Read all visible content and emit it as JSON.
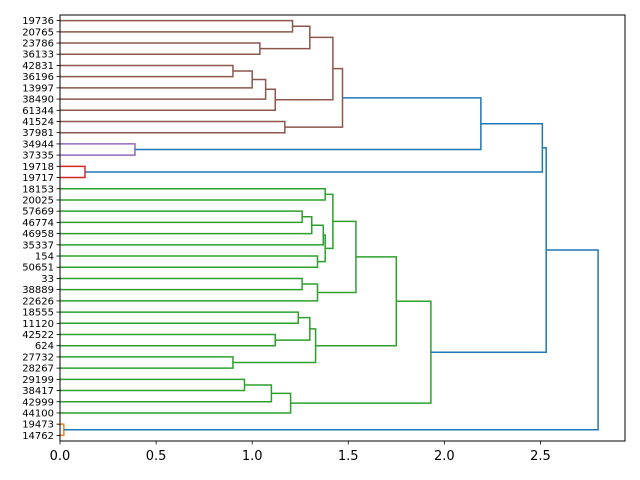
{
  "chart_data": {
    "type": "dendrogram",
    "orientation": "horizontal",
    "xlim": [
      0,
      2.94
    ],
    "xticks": [
      0.0,
      0.5,
      1.0,
      1.5,
      2.0,
      2.5
    ],
    "xtick_labels": [
      "0.0",
      "0.5",
      "1.0",
      "1.5",
      "2.0",
      "2.5"
    ],
    "leaves": [
      "19736",
      "20765",
      "23786",
      "36133",
      "42831",
      "36196",
      "13997",
      "38490",
      "61344",
      "41524",
      "37981",
      "34944",
      "37335",
      "19718",
      "19717",
      "18153",
      "20025",
      "57669",
      "46774",
      "46958",
      "35337",
      "154",
      "50651",
      "33",
      "38889",
      "22626",
      "18555",
      "11120",
      "42522",
      "624",
      "27732",
      "28267",
      "29199",
      "38417",
      "42999",
      "44100",
      "19473",
      "14762"
    ],
    "colors": {
      "brown": "#8c564b",
      "purple": "#9467bd",
      "red": "#d62728",
      "green": "#2ca02c",
      "orange": "#ff7f0e",
      "blue": "#1f77b4"
    },
    "links": [
      {
        "a": 0,
        "b": 1,
        "d": 1.21,
        "c": "brown"
      },
      {
        "a": 2,
        "b": 3,
        "d": 1.04,
        "c": "brown"
      },
      {
        "a": 0.5,
        "b": 2.5,
        "d": 1.3,
        "c": "brown"
      },
      {
        "a": 4,
        "b": 5,
        "d": 0.9,
        "c": "brown"
      },
      {
        "a": 4.5,
        "b": 6,
        "d": 1.0,
        "c": "brown"
      },
      {
        "a": 5.25,
        "b": 7,
        "d": 1.07,
        "c": "brown"
      },
      {
        "a": 6.125,
        "b": 8,
        "d": 1.12,
        "c": "brown"
      },
      {
        "a": 1.5,
        "b": 7.0625,
        "d": 1.42,
        "c": "brown"
      },
      {
        "a": 9,
        "b": 10,
        "d": 1.17,
        "c": "brown"
      },
      {
        "a": 4.28125,
        "b": 9.5,
        "d": 1.47,
        "c": "brown"
      },
      {
        "a": 11,
        "b": 12,
        "d": 0.39,
        "c": "purple"
      },
      {
        "a": 6.890625,
        "b": 11.5,
        "d": 2.19,
        "c": "blue"
      },
      {
        "a": 13,
        "b": 14,
        "d": 0.13,
        "c": "red"
      },
      {
        "a": 9.1953125,
        "b": 13.5,
        "d": 2.51,
        "c": "blue"
      },
      {
        "a": 15,
        "b": 16,
        "d": 1.38,
        "c": "green"
      },
      {
        "a": 17,
        "b": 18,
        "d": 1.26,
        "c": "green"
      },
      {
        "a": 17.5,
        "b": 19,
        "d": 1.31,
        "c": "green"
      },
      {
        "a": 18.25,
        "b": 20,
        "d": 1.37,
        "c": "green"
      },
      {
        "a": 21,
        "b": 22,
        "d": 1.34,
        "c": "green"
      },
      {
        "a": 19.125,
        "b": 21.5,
        "d": 1.38,
        "c": "green"
      },
      {
        "a": 15.5,
        "b": 20.3125,
        "d": 1.42,
        "c": "green"
      },
      {
        "a": 23,
        "b": 24,
        "d": 1.26,
        "c": "green"
      },
      {
        "a": 23.5,
        "b": 25,
        "d": 1.34,
        "c": "green"
      },
      {
        "a": 17.90625,
        "b": 24.25,
        "d": 1.54,
        "c": "green"
      },
      {
        "a": 26,
        "b": 27,
        "d": 1.24,
        "c": "green"
      },
      {
        "a": 28,
        "b": 29,
        "d": 1.12,
        "c": "green"
      },
      {
        "a": 26.5,
        "b": 28.5,
        "d": 1.3,
        "c": "green"
      },
      {
        "a": 30,
        "b": 31,
        "d": 0.9,
        "c": "green"
      },
      {
        "a": 27.5,
        "b": 30.5,
        "d": 1.33,
        "c": "green"
      },
      {
        "a": 21.078125,
        "b": 29,
        "d": 1.75,
        "c": "green"
      },
      {
        "a": 32,
        "b": 33,
        "d": 0.96,
        "c": "green"
      },
      {
        "a": 32.5,
        "b": 34,
        "d": 1.1,
        "c": "green"
      },
      {
        "a": 33.25,
        "b": 35,
        "d": 1.2,
        "c": "green"
      },
      {
        "a": 25.0390625,
        "b": 34.125,
        "d": 1.93,
        "c": "green"
      },
      {
        "a": 11.34765625,
        "b": 29.58203125,
        "d": 2.53,
        "c": "blue"
      },
      {
        "a": 36,
        "b": 37,
        "d": 0.02,
        "c": "orange"
      },
      {
        "a": 20.46484375,
        "b": 36.5,
        "d": 2.8,
        "c": "blue"
      }
    ]
  }
}
